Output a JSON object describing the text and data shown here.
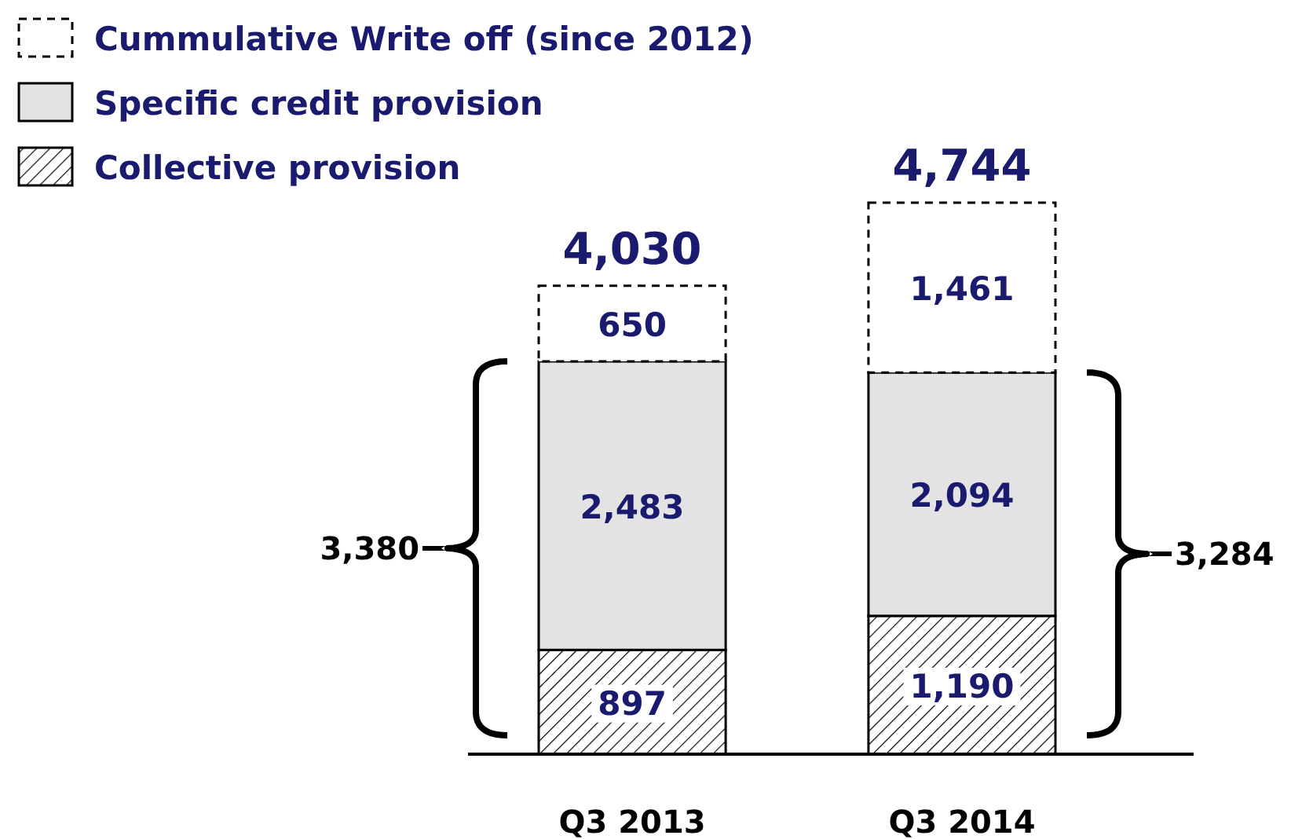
{
  "chart_data": {
    "type": "bar",
    "stacked": true,
    "categories": [
      "Q3 2013",
      "Q3 2014"
    ],
    "series": [
      {
        "name": "Collective provision",
        "color": "#000000",
        "values": [
          897,
          1190
        ],
        "value_labels": [
          "897",
          "1,190"
        ]
      },
      {
        "name": "Specific credit provision",
        "color": "#e3e3e3",
        "values": [
          2483,
          2094
        ],
        "value_labels": [
          "2,483",
          "2,094"
        ]
      },
      {
        "name": "Cummulative Write off (since 2012)",
        "color": "#ffffff",
        "line_style": "dashed",
        "values": [
          650,
          1461
        ],
        "value_labels": [
          "650",
          "1,461"
        ]
      }
    ],
    "totals": [
      "4,030",
      "4,744"
    ],
    "annotations": [
      "3,380",
      "3,284"
    ],
    "legend": "top left",
    "tick_labels": "x"
  }
}
